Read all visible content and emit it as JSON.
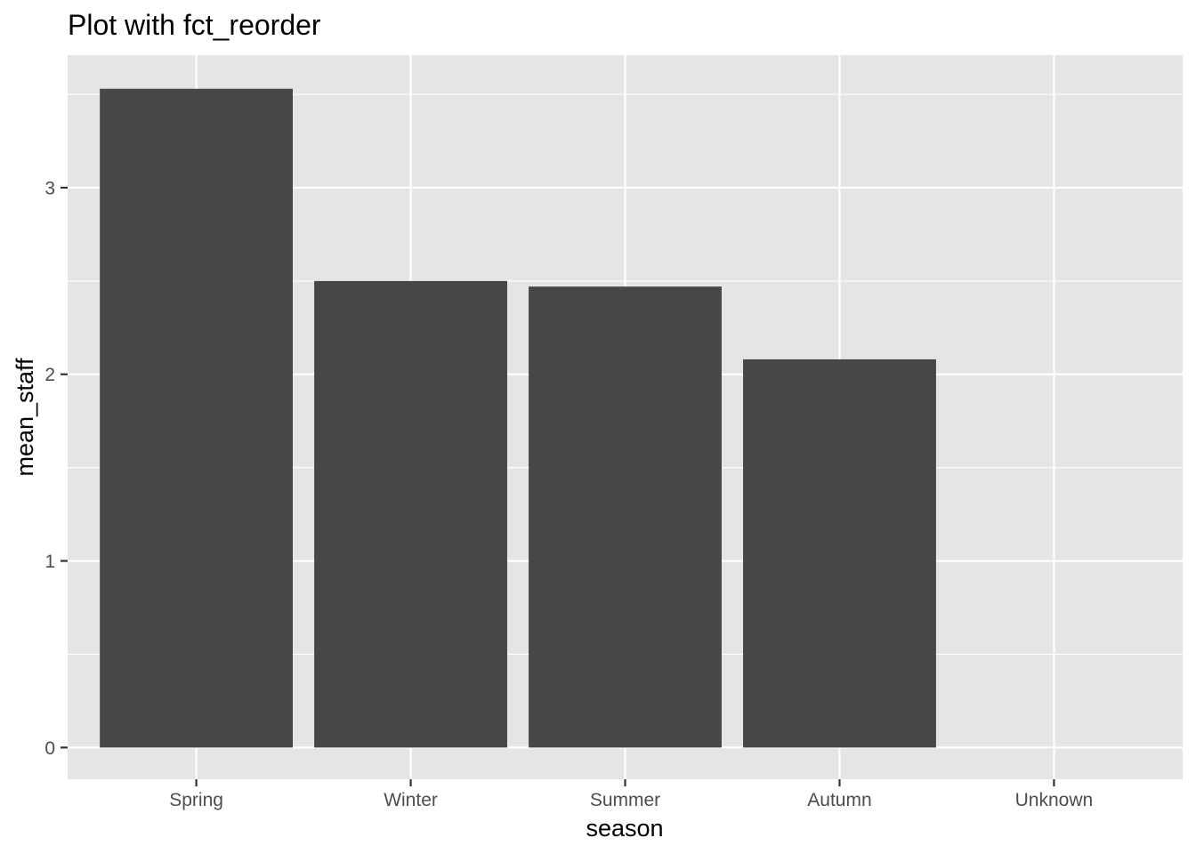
{
  "chart_data": {
    "type": "bar",
    "title": "Plot with fct_reorder",
    "xlabel": "season",
    "ylabel": "mean_staff",
    "categories": [
      "Spring",
      "Winter",
      "Summer",
      "Autumn",
      "Unknown"
    ],
    "values": [
      3.53,
      2.5,
      2.47,
      2.08,
      null
    ],
    "ylim": [
      -0.17,
      3.71
    ],
    "yticks": [
      0,
      1,
      2,
      3
    ],
    "ytick_labels": [
      "0",
      "1",
      "2",
      "3"
    ],
    "grid": true,
    "legend": "none",
    "colors": {
      "bar": "#474747",
      "panel_background": "#e5e5e5",
      "grid_line": "#ffffff",
      "tick_label": "#4d4d4d",
      "tick_mark": "#333333",
      "text": "#000000"
    }
  }
}
